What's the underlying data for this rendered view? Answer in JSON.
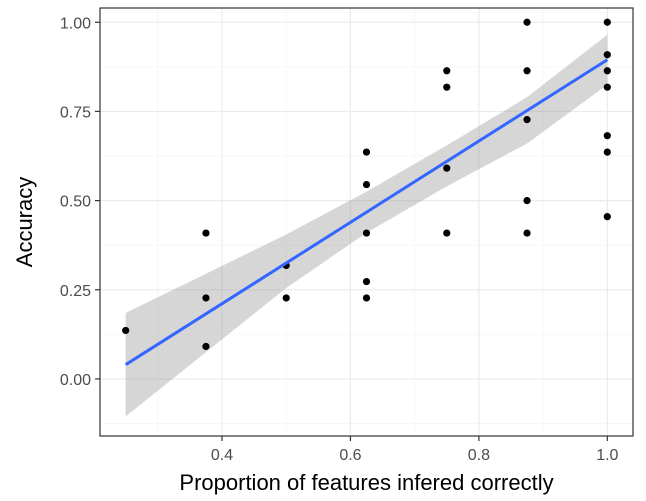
{
  "chart_data": {
    "type": "scatter",
    "xlabel": "Proportion of features infered correctly",
    "ylabel": "Accuracy",
    "xlim": [
      0.21,
      1.04
    ],
    "ylim": [
      -0.16,
      1.04
    ],
    "x_ticks": [
      0.4,
      0.6,
      0.8,
      1.0
    ],
    "x_tick_labels": [
      "0.4",
      "0.6",
      "0.8",
      "1.0"
    ],
    "y_ticks": [
      0.0,
      0.25,
      0.5,
      0.75,
      1.0
    ],
    "y_tick_labels": [
      "0.00",
      "0.25",
      "0.50",
      "0.75",
      "1.00"
    ],
    "grid": true,
    "points": [
      {
        "x": 0.25,
        "y": 0.136
      },
      {
        "x": 0.375,
        "y": 0.409
      },
      {
        "x": 0.375,
        "y": 0.227
      },
      {
        "x": 0.375,
        "y": 0.091
      },
      {
        "x": 0.5,
        "y": 0.318
      },
      {
        "x": 0.5,
        "y": 0.227
      },
      {
        "x": 0.625,
        "y": 0.636
      },
      {
        "x": 0.625,
        "y": 0.545
      },
      {
        "x": 0.625,
        "y": 0.409
      },
      {
        "x": 0.625,
        "y": 0.273
      },
      {
        "x": 0.625,
        "y": 0.227
      },
      {
        "x": 0.75,
        "y": 0.864
      },
      {
        "x": 0.75,
        "y": 0.818
      },
      {
        "x": 0.75,
        "y": 0.591
      },
      {
        "x": 0.75,
        "y": 0.409
      },
      {
        "x": 0.875,
        "y": 1.0
      },
      {
        "x": 0.875,
        "y": 0.864
      },
      {
        "x": 0.875,
        "y": 0.727
      },
      {
        "x": 0.875,
        "y": 0.5
      },
      {
        "x": 0.875,
        "y": 0.409
      },
      {
        "x": 1.0,
        "y": 1.0
      },
      {
        "x": 1.0,
        "y": 0.909
      },
      {
        "x": 1.0,
        "y": 0.864
      },
      {
        "x": 1.0,
        "y": 0.818
      },
      {
        "x": 1.0,
        "y": 0.682
      },
      {
        "x": 1.0,
        "y": 0.636
      },
      {
        "x": 1.0,
        "y": 0.455
      }
    ],
    "fit_line": {
      "x": [
        0.25,
        1.0
      ],
      "y": [
        0.04,
        0.895
      ]
    },
    "confidence_band": {
      "x": [
        0.25,
        0.375,
        0.5,
        0.625,
        0.75,
        0.875,
        1.0
      ],
      "lower": [
        -0.105,
        0.075,
        0.255,
        0.41,
        0.54,
        0.66,
        0.825
      ],
      "upper": [
        0.185,
        0.295,
        0.405,
        0.525,
        0.655,
        0.79,
        0.965
      ]
    },
    "colors": {
      "panel_background": "#ffffff",
      "grid_major": "#ebebeb",
      "grid_minor": "#f5f5f5",
      "panel_border": "#333333",
      "points": "#000000",
      "fit_line": "#3366ff",
      "band": "#999999"
    }
  }
}
